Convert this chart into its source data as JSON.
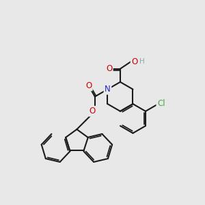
{
  "bg_color": "#e8e8e8",
  "bond_color": "#1a1a1a",
  "bond_width": 1.5,
  "atom_colors": {
    "N": "#2222cc",
    "O": "#cc0000",
    "Cl": "#44aa44",
    "H": "#88aaaa",
    "C": "#1a1a1a"
  },
  "font_size_atom": 8.5,
  "font_size_H": 7.5
}
